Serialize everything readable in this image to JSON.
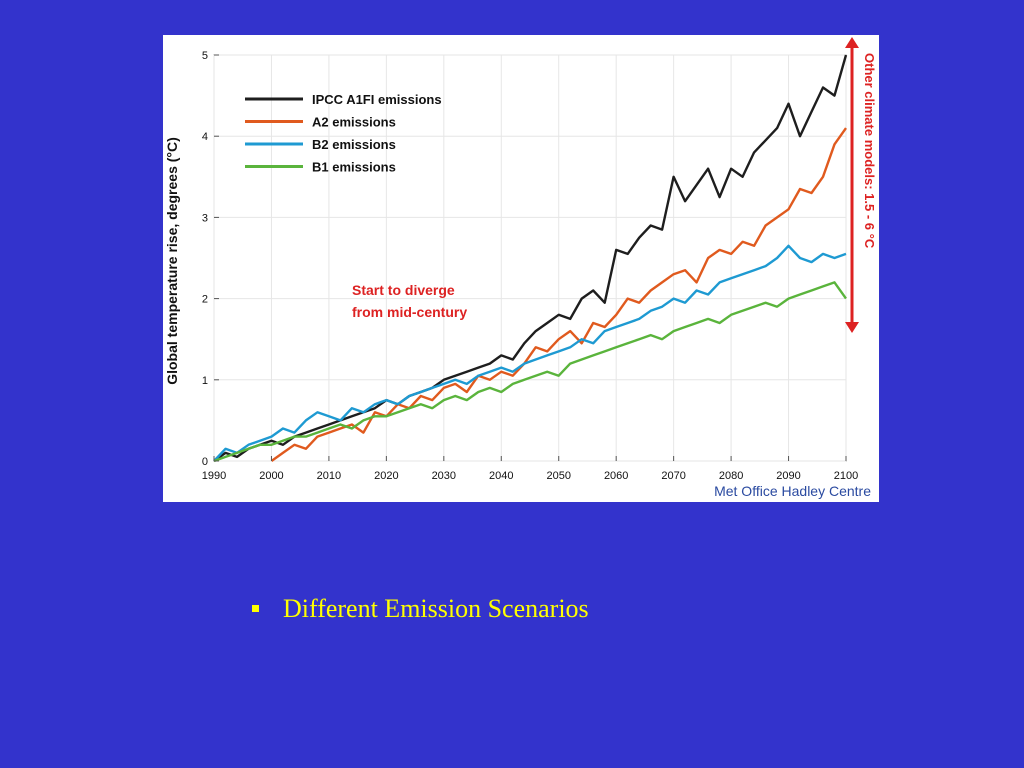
{
  "colors": {
    "background": "#3333cc",
    "bullet_text": "#ffff00",
    "annotation_red": "#dd2222",
    "credit_blue": "#2a4aa0"
  },
  "chart_data": {
    "type": "line",
    "title": "",
    "xlabel": "",
    "ylabel": "Global temperature rise, degrees (°C)",
    "xlim": [
      1990,
      2100
    ],
    "ylim": [
      0,
      5
    ],
    "xticks": [
      1990,
      2000,
      2010,
      2020,
      2030,
      2040,
      2050,
      2060,
      2070,
      2080,
      2090,
      2100
    ],
    "yticks": [
      0,
      1,
      2,
      3,
      4,
      5
    ],
    "legend_position": "top-left",
    "x": [
      1990,
      1992,
      1994,
      1996,
      1998,
      2000,
      2002,
      2004,
      2006,
      2008,
      2010,
      2012,
      2014,
      2016,
      2018,
      2020,
      2022,
      2024,
      2026,
      2028,
      2030,
      2032,
      2034,
      2036,
      2038,
      2040,
      2042,
      2044,
      2046,
      2048,
      2050,
      2052,
      2054,
      2056,
      2058,
      2060,
      2062,
      2064,
      2066,
      2068,
      2070,
      2072,
      2074,
      2076,
      2078,
      2080,
      2082,
      2084,
      2086,
      2088,
      2090,
      2092,
      2094,
      2096,
      2098,
      2100
    ],
    "series": [
      {
        "name": "IPCC A1FI emissions",
        "color": "#1e1e1e",
        "values": [
          0.0,
          0.1,
          0.05,
          0.15,
          0.2,
          0.25,
          0.2,
          0.3,
          0.35,
          0.4,
          0.45,
          0.5,
          0.55,
          0.6,
          0.65,
          0.75,
          0.7,
          0.8,
          0.85,
          0.9,
          1.0,
          1.05,
          1.1,
          1.15,
          1.2,
          1.3,
          1.25,
          1.45,
          1.6,
          1.7,
          1.8,
          1.75,
          2.0,
          2.1,
          1.95,
          2.6,
          2.55,
          2.75,
          2.9,
          2.85,
          3.5,
          3.2,
          3.4,
          3.6,
          3.25,
          3.6,
          3.5,
          3.8,
          3.95,
          4.1,
          4.4,
          4.0,
          4.3,
          4.6,
          4.5,
          5.0
        ]
      },
      {
        "name": "A2 emissions",
        "color": "#e05a1e",
        "values": [
          null,
          null,
          null,
          null,
          null,
          0.0,
          0.1,
          0.2,
          0.15,
          0.3,
          0.35,
          0.4,
          0.45,
          0.35,
          0.6,
          0.55,
          0.7,
          0.65,
          0.8,
          0.75,
          0.9,
          0.95,
          0.85,
          1.05,
          1.0,
          1.1,
          1.05,
          1.2,
          1.4,
          1.35,
          1.5,
          1.6,
          1.45,
          1.7,
          1.65,
          1.8,
          2.0,
          1.95,
          2.1,
          2.2,
          2.3,
          2.35,
          2.2,
          2.5,
          2.6,
          2.55,
          2.7,
          2.65,
          2.9,
          3.0,
          3.1,
          3.35,
          3.3,
          3.5,
          3.9,
          4.1
        ]
      },
      {
        "name": "B2 emissions",
        "color": "#1e9ad2",
        "values": [
          0.0,
          0.15,
          0.1,
          0.2,
          0.25,
          0.3,
          0.4,
          0.35,
          0.5,
          0.6,
          0.55,
          0.5,
          0.65,
          0.6,
          0.7,
          0.75,
          0.7,
          0.8,
          0.85,
          0.9,
          0.95,
          1.0,
          0.95,
          1.05,
          1.1,
          1.15,
          1.1,
          1.2,
          1.25,
          1.3,
          1.35,
          1.4,
          1.5,
          1.45,
          1.6,
          1.65,
          1.7,
          1.75,
          1.85,
          1.9,
          2.0,
          1.95,
          2.1,
          2.05,
          2.2,
          2.25,
          2.3,
          2.35,
          2.4,
          2.5,
          2.65,
          2.5,
          2.45,
          2.55,
          2.5,
          2.55
        ]
      },
      {
        "name": "B1 emissions",
        "color": "#5ab43c",
        "values": [
          0.0,
          0.05,
          0.1,
          0.15,
          0.2,
          0.2,
          0.25,
          0.3,
          0.3,
          0.35,
          0.4,
          0.45,
          0.4,
          0.5,
          0.55,
          0.55,
          0.6,
          0.65,
          0.7,
          0.65,
          0.75,
          0.8,
          0.75,
          0.85,
          0.9,
          0.85,
          0.95,
          1.0,
          1.05,
          1.1,
          1.05,
          1.2,
          1.25,
          1.3,
          1.35,
          1.4,
          1.45,
          1.5,
          1.55,
          1.5,
          1.6,
          1.65,
          1.7,
          1.75,
          1.7,
          1.8,
          1.85,
          1.9,
          1.95,
          1.9,
          2.0,
          2.05,
          2.1,
          2.15,
          2.2,
          2.0
        ]
      }
    ],
    "annotations": [
      {
        "text_lines": [
          "Start to diverge",
          "from mid-century"
        ],
        "color": "#dd2222"
      }
    ],
    "side_range": {
      "label": "Other climate models: 1.5 - 6 °C",
      "color": "#dd2222"
    },
    "credit": "Met Office Hadley Centre"
  },
  "bullet": {
    "text": "Different Emission Scenarios"
  }
}
